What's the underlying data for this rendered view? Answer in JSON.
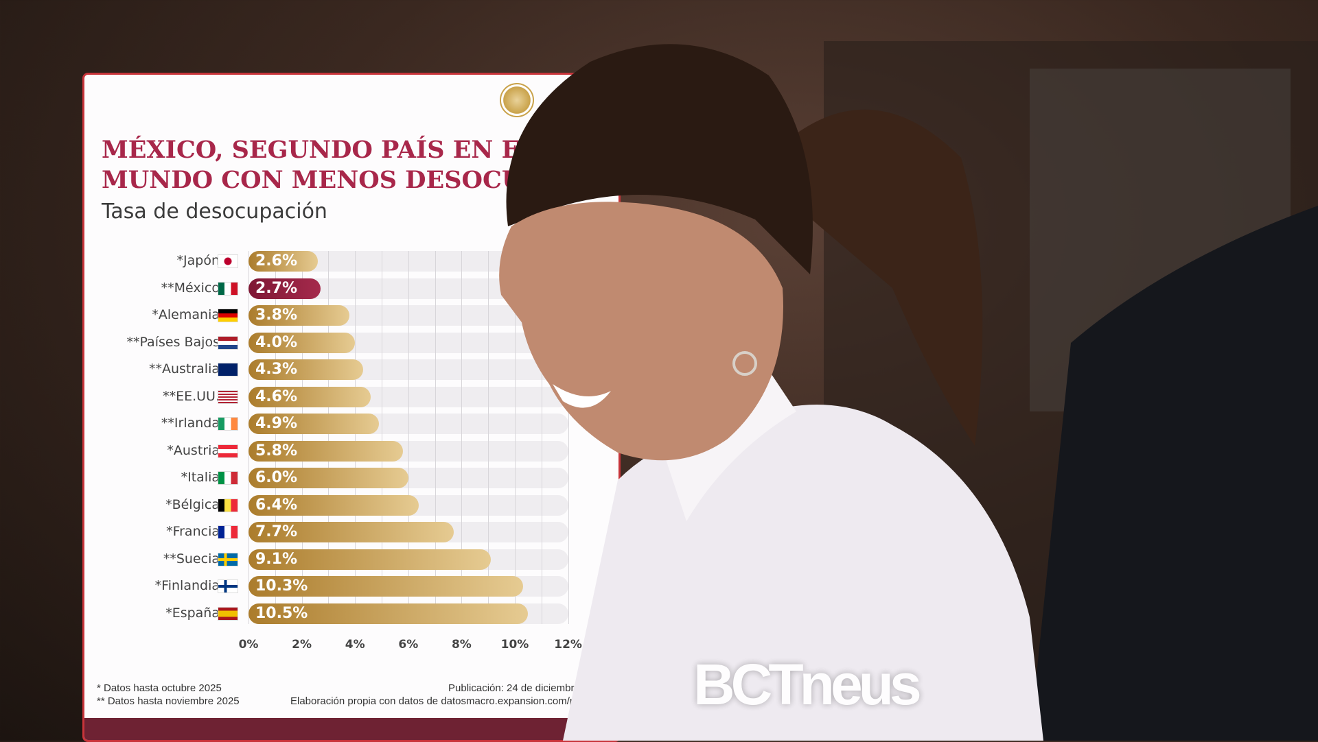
{
  "card": {
    "title": "MÉXICO, SEGUNDO PAÍS EN EL\nMUNDO CON MENOS DESOCUPACIÓN",
    "subtitle": "Tasa de desocupación",
    "footnote_1": "* Datos hasta octubre 2025",
    "footnote_2": "** Datos hasta noviembre 2025",
    "publication": "Publicación: 24 de diciembre 2025",
    "source": "Elaboración propia con datos de datosmacro.expansion.com/paro"
  },
  "watermark": "BCTneus",
  "colors": {
    "bar": "#c49a4e",
    "highlight": "#8a1c3c",
    "title": "#a8274a",
    "band": "#6e2233"
  },
  "chart_data": {
    "type": "bar",
    "orientation": "horizontal",
    "title": "MÉXICO, SEGUNDO PAÍS EN EL MUNDO CON MENOS DESOCUPACIÓN",
    "subtitle": "Tasa de desocupación",
    "categories": [
      "*Japón",
      "**México",
      "*Alemania",
      "**Países Bajos",
      "**Australia",
      "**EE.UU.",
      "**Irlanda",
      "*Austria",
      "*Italia",
      "*Bélgica",
      "*Francia",
      "**Suecia",
      "*Finlandia",
      "*España"
    ],
    "flags": [
      "jp",
      "mx",
      "de",
      "nl",
      "au",
      "us",
      "ie",
      "at",
      "it",
      "be",
      "fr",
      "se",
      "fi",
      "es"
    ],
    "values": [
      2.6,
      2.7,
      3.8,
      4.0,
      4.3,
      4.6,
      4.9,
      5.8,
      6.0,
      6.4,
      7.7,
      9.1,
      10.3,
      10.5
    ],
    "value_labels": [
      "2.6%",
      "2.7%",
      "3.8%",
      "4.0%",
      "4.3%",
      "4.6%",
      "4.9%",
      "5.8%",
      "6.0%",
      "6.4%",
      "7.7%",
      "9.1%",
      "10.3%",
      "10.5%"
    ],
    "highlight": "**México",
    "xlim": [
      0,
      12
    ],
    "xticks": [
      "0%",
      "2%",
      "4%",
      "6%",
      "8%",
      "10%",
      "12%"
    ],
    "grid": true
  }
}
